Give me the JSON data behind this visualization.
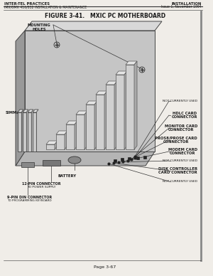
{
  "page_bg": "#f0ede8",
  "text_color": "#1a1a1a",
  "line_color": "#333333",
  "header_left_line1": "INTER-TEL PRACTICES",
  "header_left_line2": "IMX/GMX 416/832 INSTALLATION & MAINTENANCE",
  "header_right_line1": "INSTALLATION",
  "header_right_line2": "Issue 1, November 1994",
  "figure_title": "FIGURE 3-41.   MXIC PC MOTHERBOARD",
  "footer_text": "Page 3-67",
  "labels_right": [
    [
      "NOT CURRENTLY USED",
      false
    ],
    [
      "HDLC CARD\nCONNECTOR",
      true
    ],
    [
      "MONITOR CARD\nCONNECTOR",
      true
    ],
    [
      "PROS8/PROSE CARD\nCONNECTOR",
      true
    ],
    [
      "MODEM CARD\nCONNECTOR",
      true
    ],
    [
      "NOT CURRENTLY USED",
      false
    ],
    [
      "DISK CONTROLLER\nCARD CONNECTOR",
      true
    ],
    [
      "NOT CURRENTLY USED",
      false
    ]
  ]
}
